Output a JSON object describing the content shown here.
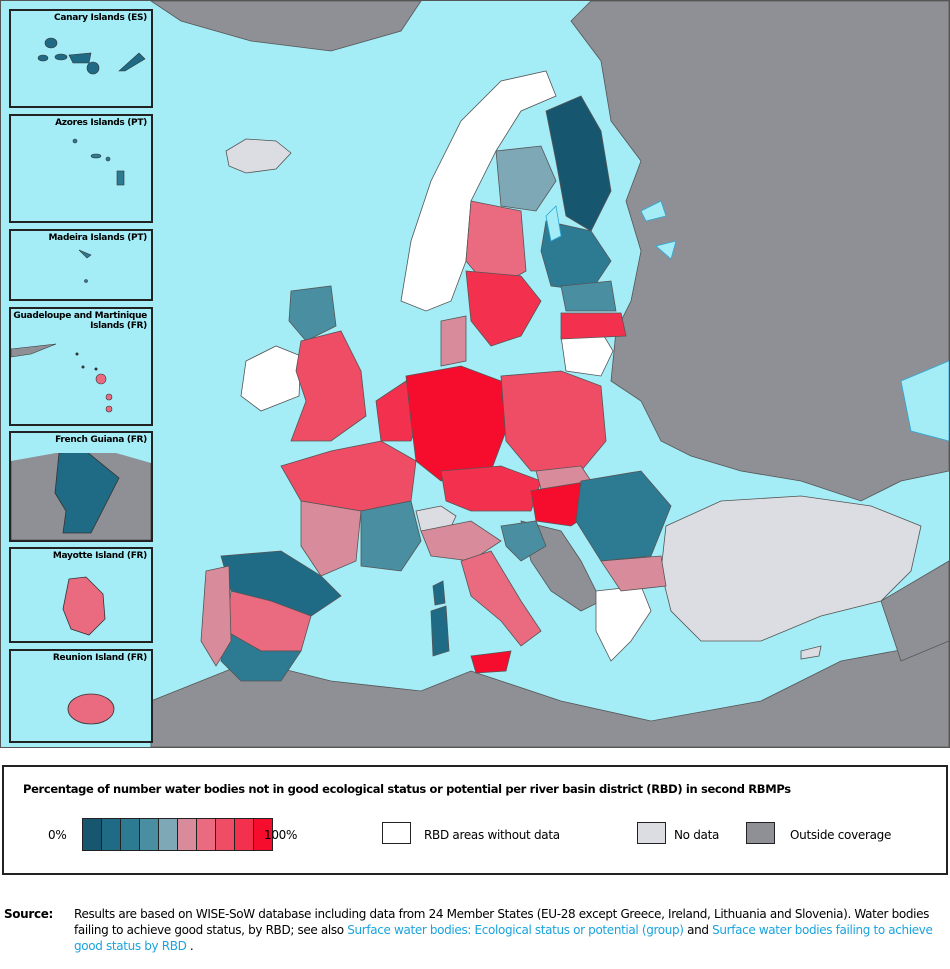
{
  "colors": {
    "sea": "#a4ecf6",
    "outside_coverage": "#8f9095",
    "no_data": "#dcdde2",
    "without_data": "#ffffff",
    "ramp": [
      "#17566f",
      "#1f6b85",
      "#2d7b93",
      "#4a8ea2",
      "#7ea8b5",
      "#d88c9b",
      "#ea6a80",
      "#ef4c65",
      "#f3314e",
      "#f60d2e"
    ]
  },
  "insets": [
    {
      "label": "Canary Islands (ES)",
      "fill": "#1f6b85"
    },
    {
      "label": "Azores Islands (PT)",
      "fill": "#2d7b93"
    },
    {
      "label": "Madeira Islands (PT)",
      "fill": "#2d7b93"
    },
    {
      "label": "Guadeloupe and Martinique Islands (FR)",
      "fill": "#ea6a80"
    },
    {
      "label": "French Guiana (FR)",
      "fill": "#1f6b85"
    },
    {
      "label": "Mayotte Island (FR)",
      "fill": "#ea6a80"
    },
    {
      "label": "Reunion Island (FR)",
      "fill": "#ea6a80"
    }
  ],
  "legend": {
    "title": "Percentage of number water bodies not in good ecological status or potential per river basin district (RBD) in second RBMPs",
    "min_label": "0%",
    "max_label": "100%",
    "without_data": "RBD areas without data",
    "no_data": "No data",
    "outside": "Outside coverage"
  },
  "source": {
    "label": "Source:",
    "text1": "Results are based on WISE-SoW database including data from 24 Member States (EU-28 except Greece, Ireland, Lithuania and Slovenia). Water bodies failing to achieve good status, by RBD; see also ",
    "link1": "Surface water bodies: Ecological status or potential (group)",
    "text2": " and ",
    "link2": "Surface water bodies failing to achieve good status by RBD",
    "text3": " ."
  }
}
